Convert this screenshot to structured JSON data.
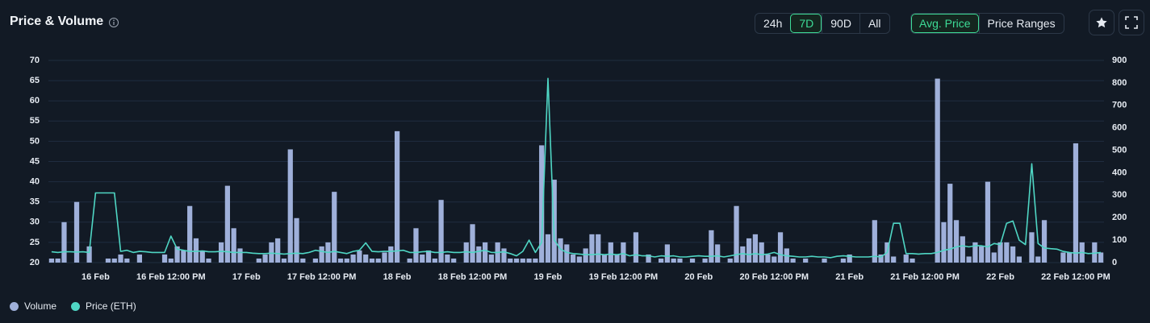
{
  "chart_data": {
    "type": "combo",
    "title": "Price & Volume",
    "categories": [
      null,
      null,
      null,
      null,
      null,
      null,
      null,
      "16 Feb",
      null,
      null,
      null,
      null,
      null,
      null,
      null,
      null,
      null,
      null,
      null,
      "16 Feb 12:00 PM",
      null,
      null,
      null,
      null,
      null,
      null,
      null,
      null,
      null,
      null,
      null,
      "17 Feb",
      null,
      null,
      null,
      null,
      null,
      null,
      null,
      null,
      null,
      null,
      null,
      "17 Feb 12:00 PM",
      null,
      null,
      null,
      null,
      null,
      null,
      null,
      null,
      null,
      null,
      null,
      "18 Feb",
      null,
      null,
      null,
      null,
      null,
      null,
      null,
      null,
      null,
      null,
      null,
      "18 Feb 12:00 PM",
      null,
      null,
      null,
      null,
      null,
      null,
      null,
      null,
      null,
      null,
      null,
      "19 Feb",
      null,
      null,
      null,
      null,
      null,
      null,
      null,
      null,
      null,
      null,
      null,
      "19 Feb 12:00 PM",
      null,
      null,
      null,
      null,
      null,
      null,
      null,
      null,
      null,
      null,
      null,
      "20 Feb",
      null,
      null,
      null,
      null,
      null,
      null,
      null,
      null,
      null,
      null,
      null,
      "20 Feb 12:00 PM",
      null,
      null,
      null,
      null,
      null,
      null,
      null,
      null,
      null,
      null,
      null,
      "21 Feb",
      null,
      null,
      null,
      null,
      null,
      null,
      null,
      null,
      null,
      null,
      null,
      "21 Feb 12:00 PM",
      null,
      null,
      null,
      null,
      null,
      null,
      null,
      null,
      null,
      null,
      null,
      "22 Feb",
      null,
      null,
      null,
      null,
      null,
      null,
      null,
      null,
      null,
      null,
      null,
      "22 Feb 12:00 PM",
      null,
      null,
      null,
      null
    ],
    "series": [
      {
        "name": "Volume",
        "type": "bar",
        "color": "#9fb0da",
        "values": [
          21,
          21,
          30,
          null,
          35,
          null,
          24,
          null,
          null,
          21,
          21,
          22,
          21,
          null,
          22,
          null,
          null,
          null,
          22,
          21,
          24,
          23,
          34,
          26,
          23,
          21,
          null,
          25,
          39,
          28.5,
          23.5,
          null,
          null,
          21,
          22,
          25,
          26,
          21,
          48,
          31,
          21,
          null,
          21,
          24,
          25,
          37.5,
          21,
          21,
          22,
          23,
          22,
          21,
          21,
          22.5,
          24,
          52.5,
          null,
          21,
          28.5,
          22,
          23,
          21,
          35.5,
          22,
          21,
          null,
          25,
          29.5,
          24,
          25,
          22,
          25,
          23.5,
          21,
          21,
          21,
          21,
          21,
          49,
          27,
          40.5,
          26,
          24.5,
          22,
          21.5,
          23.5,
          27,
          27,
          22,
          25,
          22,
          25,
          null,
          27.5,
          null,
          22,
          null,
          21,
          24.5,
          21,
          21,
          null,
          21,
          null,
          21,
          28,
          24.5,
          null,
          21,
          34,
          24,
          26,
          27,
          25,
          22,
          21.5,
          27.5,
          23.5,
          21,
          null,
          21,
          null,
          null,
          21,
          null,
          null,
          21,
          22,
          null,
          null,
          null,
          30.5,
          22,
          25,
          21.5,
          null,
          22,
          21,
          null,
          null,
          null,
          65.5,
          30,
          39.5,
          30.5,
          26.5,
          21.5,
          25,
          24,
          40,
          22.5,
          25,
          25,
          24,
          21.5,
          null,
          27.5,
          21.5,
          30.5,
          null,
          null,
          22.5,
          22.5,
          49.5,
          25,
          null,
          25,
          22.5
        ]
      },
      {
        "name": "Price (ETH)",
        "type": "line",
        "axis": "y2",
        "color": "#4fd6c4",
        "values": [
          48,
          45,
          48,
          48,
          47,
          48,
          45,
          310,
          310,
          310,
          310,
          50,
          55,
          45,
          50,
          48,
          45,
          45,
          45,
          118,
          60,
          55,
          50,
          50,
          52,
          48,
          48,
          50,
          48,
          45,
          45,
          45,
          42,
          40,
          40,
          42,
          40,
          38,
          40,
          42,
          40,
          45,
          55,
          50,
          45,
          50,
          45,
          40,
          50,
          55,
          88,
          50,
          48,
          50,
          50,
          52,
          55,
          45,
          45,
          48,
          50,
          45,
          45,
          48,
          45,
          45,
          48,
          45,
          50,
          55,
          45,
          45,
          48,
          40,
          30,
          50,
          100,
          45,
          90,
          820,
          100,
          60,
          45,
          40,
          38,
          35,
          35,
          38,
          35,
          38,
          35,
          40,
          30,
          35,
          30,
          30,
          25,
          30,
          28,
          30,
          25,
          25,
          28,
          30,
          28,
          28,
          30,
          25,
          30,
          35,
          40,
          35,
          40,
          35,
          38,
          45,
          35,
          30,
          28,
          25,
          25,
          28,
          25,
          25,
          22,
          28,
          30,
          28,
          25,
          25,
          25,
          28,
          25,
          45,
          175,
          175,
          40,
          40,
          38,
          40,
          40,
          45,
          55,
          60,
          70,
          75,
          70,
          75,
          75,
          70,
          85,
          80,
          175,
          185,
          100,
          80,
          440,
          85,
          65,
          62,
          60,
          50,
          45,
          42,
          45,
          40,
          42,
          45
        ]
      }
    ],
    "ylim": [
      20,
      70
    ],
    "yticks": [
      20,
      25,
      30,
      35,
      40,
      45,
      50,
      55,
      60,
      65,
      70
    ],
    "y2lim": [
      0,
      900
    ],
    "y2ticks": [
      0,
      100,
      200,
      300,
      400,
      500,
      600,
      700,
      800,
      900
    ],
    "grid": true,
    "legend": "bottom-left"
  },
  "ui": {
    "ranges": [
      "24h",
      "7D",
      "90D",
      "All"
    ],
    "active_range": 1,
    "views": [
      "Avg. Price",
      "Price Ranges"
    ],
    "active_view": 0
  }
}
